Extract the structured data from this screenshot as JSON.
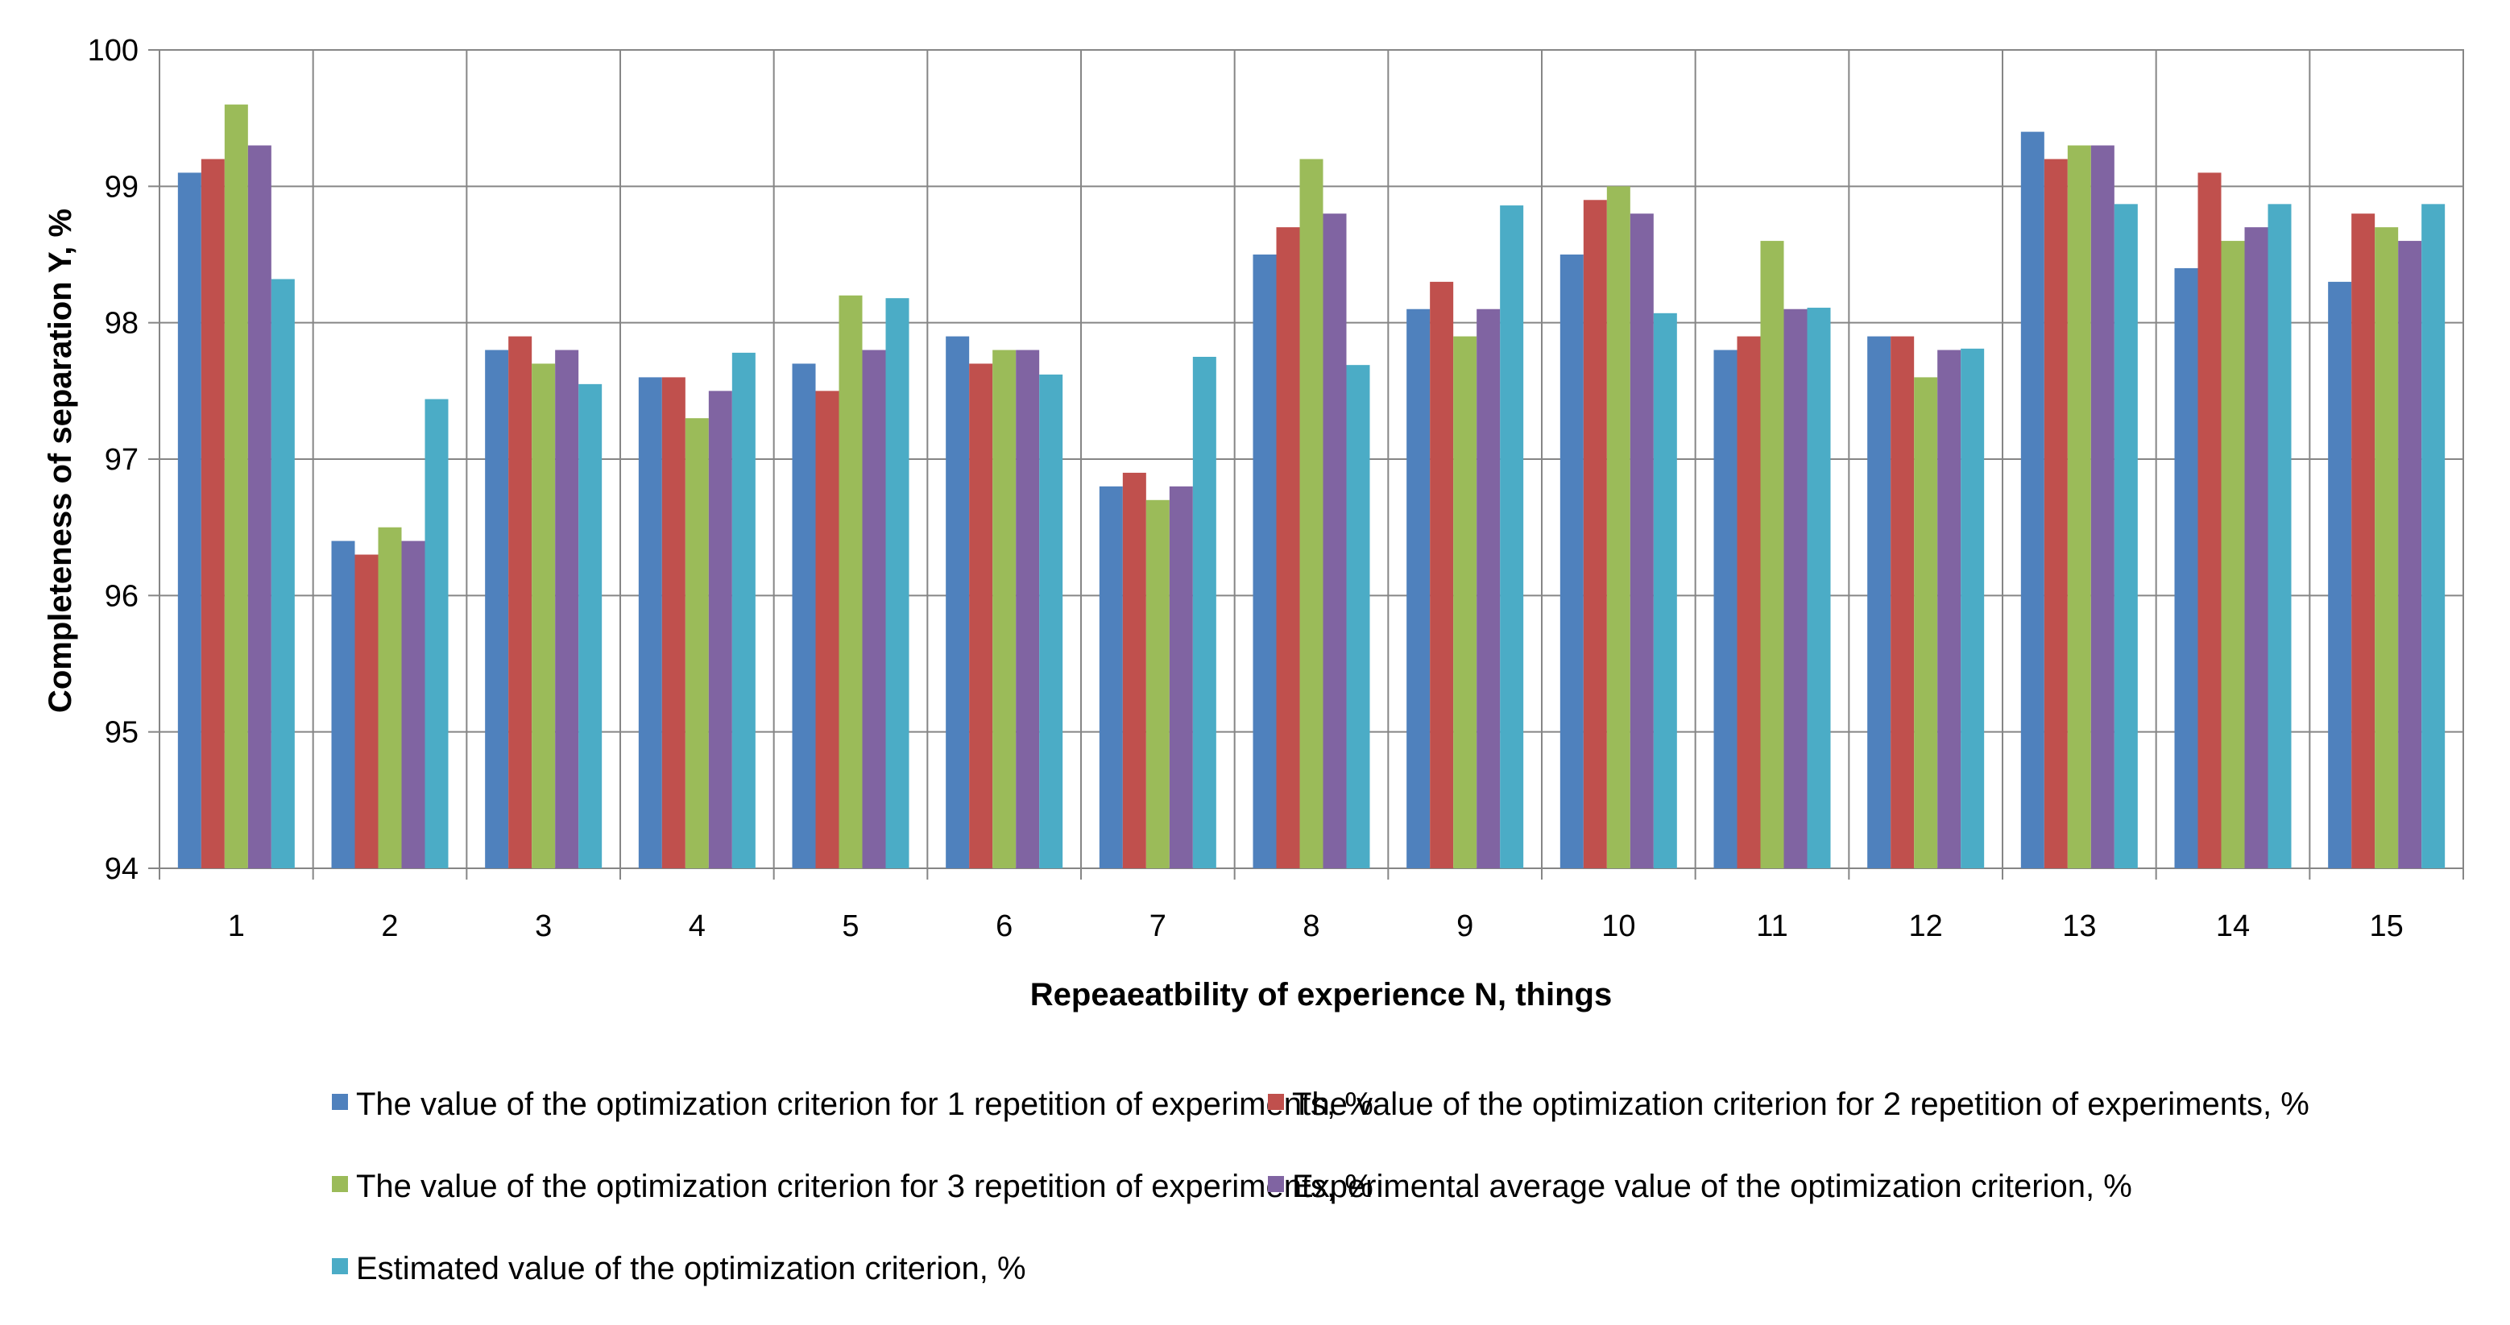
{
  "chart_data": {
    "type": "bar",
    "title": "",
    "xlabel": "Repeaeatbility of experience N, things",
    "ylabel": "Completeness of separation  Y, %",
    "ylim": [
      94,
      100
    ],
    "yticks": [
      "94",
      "95",
      "96",
      "97",
      "98",
      "99",
      "100"
    ],
    "grid": true,
    "legend_position": "bottom",
    "categories": [
      "1",
      "2",
      "3",
      "4",
      "5",
      "6",
      "7",
      "8",
      "9",
      "10",
      "11",
      "12",
      "13",
      "14",
      "15"
    ],
    "series": [
      {
        "name": "The value of the optimization criterion for 1 repetition of experiments, %",
        "color": "#4F81BD",
        "values": [
          99.1,
          96.4,
          97.8,
          97.6,
          97.7,
          97.9,
          96.8,
          98.5,
          98.1,
          98.5,
          97.8,
          97.9,
          99.4,
          98.4,
          98.3
        ]
      },
      {
        "name": "The value of the optimization criterion for 2 repetition of experiments, %",
        "color": "#C0504D",
        "values": [
          99.2,
          96.3,
          97.9,
          97.6,
          97.5,
          97.7,
          96.9,
          98.7,
          98.3,
          98.9,
          97.9,
          97.9,
          99.2,
          99.1,
          98.8
        ]
      },
      {
        "name": "The value of the optimization criterion for 3 repetition of experiments, %",
        "color": "#9BBB59",
        "values": [
          99.6,
          96.5,
          97.7,
          97.3,
          98.2,
          97.8,
          96.7,
          99.2,
          97.9,
          99.0,
          98.6,
          97.6,
          99.3,
          98.6,
          98.7
        ]
      },
      {
        "name": "Experimental average value of the optimization criterion, %",
        "color": "#8064A2",
        "values": [
          99.3,
          96.4,
          97.8,
          97.5,
          97.8,
          97.8,
          96.8,
          98.8,
          98.1,
          98.8,
          98.1,
          97.8,
          99.3,
          98.7,
          98.6
        ]
      },
      {
        "name": "Estimated value of the optimization criterion, %",
        "color": "#4BACC6",
        "values": [
          98.32,
          97.44,
          97.55,
          97.78,
          98.18,
          97.62,
          97.75,
          97.69,
          98.86,
          98.07,
          98.11,
          97.81,
          98.87,
          98.87,
          98.87
        ]
      }
    ]
  }
}
